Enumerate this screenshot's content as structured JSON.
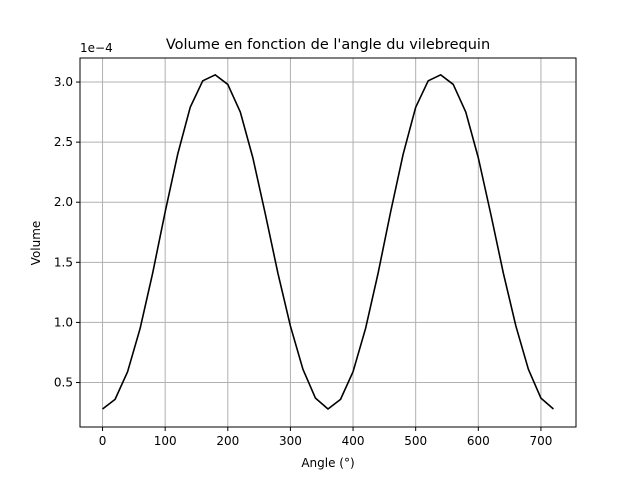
{
  "chart_data": {
    "type": "line",
    "title": "Volume en fonction de l'angle du vilebrequin",
    "xlabel": "Angle (°)",
    "ylabel": "Volume",
    "y_offset_text": "1e−4",
    "xlim": [
      -36,
      756
    ],
    "ylim": [
      0.13,
      3.2
    ],
    "xticks": [
      0,
      100,
      200,
      300,
      400,
      500,
      600,
      700
    ],
    "yticks": [
      0.5,
      1.0,
      1.5,
      2.0,
      2.5,
      3.0
    ],
    "ytick_labels": [
      "0.5",
      "1.0",
      "1.5",
      "2.0",
      "2.5",
      "3.0"
    ],
    "grid": true,
    "series": [
      {
        "color": "#000000",
        "x": [
          0,
          20,
          40,
          60,
          80,
          100,
          120,
          140,
          160,
          180,
          200,
          220,
          240,
          260,
          280,
          300,
          320,
          340,
          360,
          380,
          400,
          420,
          440,
          460,
          480,
          500,
          520,
          540,
          560,
          580,
          600,
          620,
          640,
          660,
          680,
          700,
          720
        ],
        "values": [
          0.28,
          0.36,
          0.59,
          0.95,
          1.41,
          1.92,
          2.4,
          2.79,
          3.01,
          3.06,
          2.98,
          2.75,
          2.37,
          1.9,
          1.41,
          0.97,
          0.61,
          0.37,
          0.28,
          0.36,
          0.59,
          0.95,
          1.41,
          1.92,
          2.4,
          2.79,
          3.01,
          3.06,
          2.98,
          2.75,
          2.37,
          1.9,
          1.41,
          0.97,
          0.61,
          0.37,
          0.28
        ]
      }
    ]
  }
}
